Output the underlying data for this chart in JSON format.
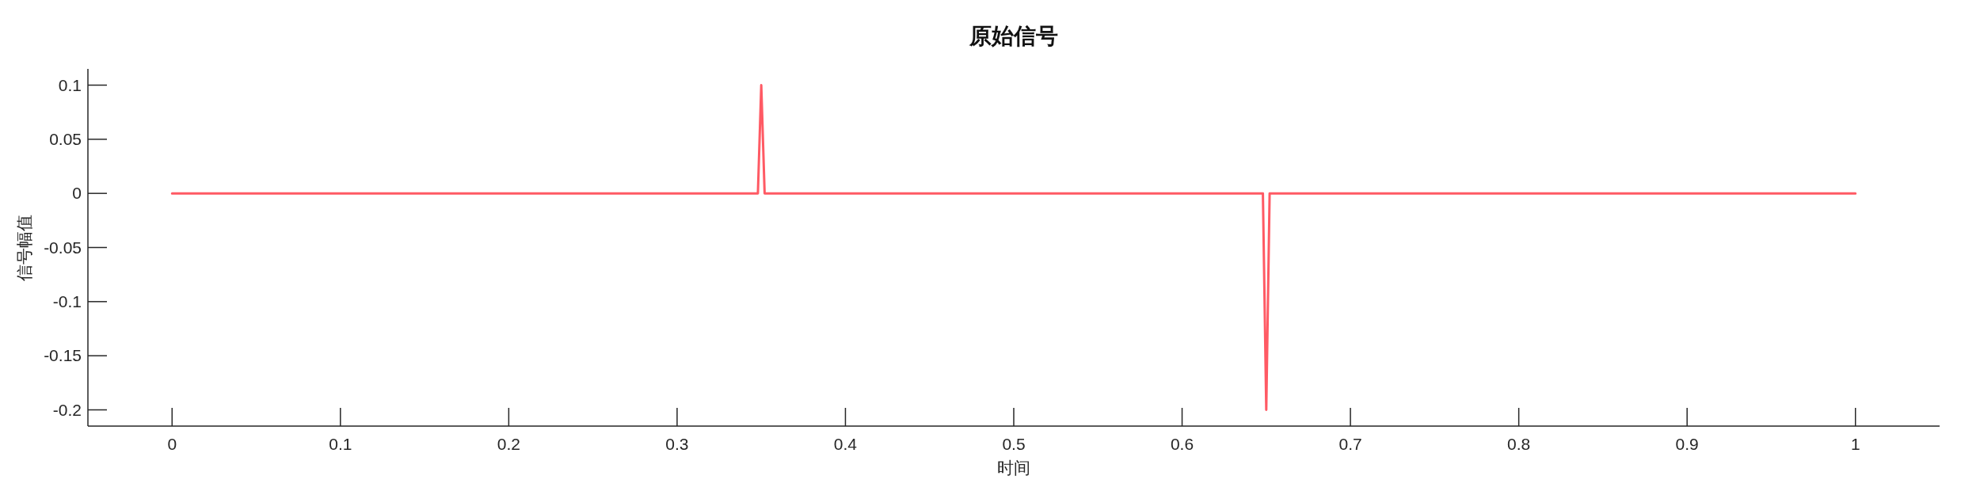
{
  "chart_data": {
    "type": "line",
    "title": "原始信号",
    "xlabel": "时间",
    "ylabel": "信号幅值",
    "series": [
      {
        "color": "#ff5a64",
        "x": [
          0,
          0.348,
          0.35,
          0.352,
          0.648,
          0.65,
          0.652,
          1
        ],
        "values": [
          0,
          0,
          0.1,
          0,
          0,
          -0.2,
          0,
          0
        ]
      }
    ],
    "xlim": [
      -0.05,
      1.05
    ],
    "ylim": [
      -0.215,
      0.115
    ],
    "xticks": [
      0,
      0.1,
      0.2,
      0.3,
      0.4,
      0.5,
      0.6,
      0.7,
      0.8,
      0.9,
      1
    ],
    "yticks": [
      -0.2,
      -0.15,
      -0.1,
      -0.05,
      0,
      0.05,
      0.1
    ]
  }
}
